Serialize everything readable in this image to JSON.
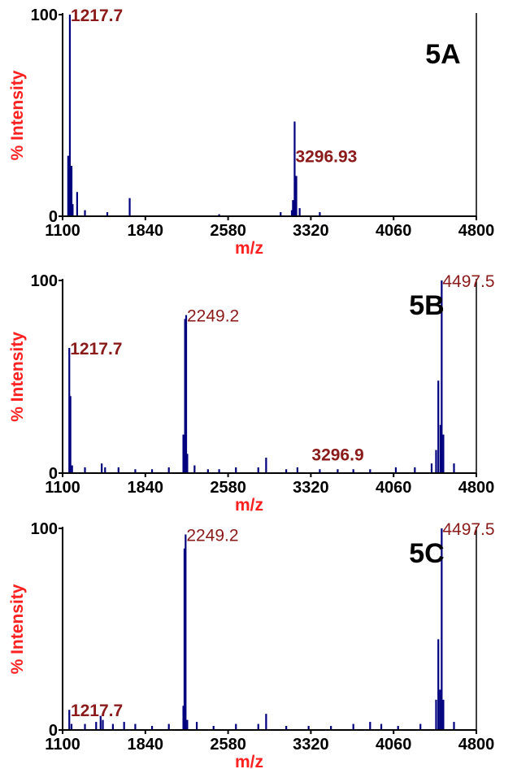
{
  "chart_data": [
    {
      "type": "bar",
      "panel_label": "5A",
      "xlabel": "m/z",
      "ylabel": "% Intensity",
      "xlim": [
        1100,
        4800
      ],
      "ylim": [
        0,
        100
      ],
      "x_ticks": [
        "1100",
        "1840",
        "2580",
        "3320",
        "4060",
        "4800"
      ],
      "y_ticks": [
        "0",
        "100"
      ],
      "peaks": [
        {
          "x": 1150,
          "y": 30
        },
        {
          "x": 1165,
          "y": 100
        },
        {
          "x": 1180,
          "y": 25
        },
        {
          "x": 1190,
          "y": 6
        },
        {
          "x": 1230,
          "y": 12
        },
        {
          "x": 1300,
          "y": 3
        },
        {
          "x": 1500,
          "y": 2
        },
        {
          "x": 1700,
          "y": 9
        },
        {
          "x": 2500,
          "y": 1
        },
        {
          "x": 3050,
          "y": 2
        },
        {
          "x": 3150,
          "y": 3
        },
        {
          "x": 3160,
          "y": 8
        },
        {
          "x": 3175,
          "y": 47
        },
        {
          "x": 3190,
          "y": 20
        },
        {
          "x": 3220,
          "y": 4
        },
        {
          "x": 3400,
          "y": 2
        }
      ],
      "annotations": [
        {
          "text": "1217.7",
          "x": 1165,
          "y": 100,
          "bold": true
        },
        {
          "text": "3296.93",
          "x": 3175,
          "y": 30,
          "bold": true
        }
      ]
    },
    {
      "type": "bar",
      "panel_label": "5B",
      "xlabel": "m/z",
      "ylabel": "% Intensity",
      "xlim": [
        1100,
        4800
      ],
      "ylim": [
        0,
        100
      ],
      "x_ticks": [
        "1100",
        "1840",
        "2580",
        "3320",
        "4060",
        "4800"
      ],
      "y_ticks": [
        "0",
        "100"
      ],
      "peaks": [
        {
          "x": 1160,
          "y": 65
        },
        {
          "x": 1170,
          "y": 40
        },
        {
          "x": 1185,
          "y": 4
        },
        {
          "x": 1300,
          "y": 3
        },
        {
          "x": 1450,
          "y": 5
        },
        {
          "x": 1480,
          "y": 3
        },
        {
          "x": 1600,
          "y": 3
        },
        {
          "x": 1750,
          "y": 2
        },
        {
          "x": 1900,
          "y": 2
        },
        {
          "x": 2050,
          "y": 3
        },
        {
          "x": 2180,
          "y": 20
        },
        {
          "x": 2195,
          "y": 80
        },
        {
          "x": 2205,
          "y": 82
        },
        {
          "x": 2215,
          "y": 10
        },
        {
          "x": 2280,
          "y": 4
        },
        {
          "x": 2400,
          "y": 2
        },
        {
          "x": 2500,
          "y": 2
        },
        {
          "x": 2650,
          "y": 3
        },
        {
          "x": 2850,
          "y": 3
        },
        {
          "x": 2920,
          "y": 8
        },
        {
          "x": 3100,
          "y": 2
        },
        {
          "x": 3200,
          "y": 3
        },
        {
          "x": 3400,
          "y": 2
        },
        {
          "x": 3560,
          "y": 2
        },
        {
          "x": 3700,
          "y": 2
        },
        {
          "x": 3850,
          "y": 2
        },
        {
          "x": 4080,
          "y": 3
        },
        {
          "x": 4250,
          "y": 3
        },
        {
          "x": 4400,
          "y": 5
        },
        {
          "x": 4440,
          "y": 12
        },
        {
          "x": 4460,
          "y": 48
        },
        {
          "x": 4480,
          "y": 25
        },
        {
          "x": 4490,
          "y": 100
        },
        {
          "x": 4505,
          "y": 20
        },
        {
          "x": 4600,
          "y": 5
        }
      ],
      "annotations": [
        {
          "text": "1217.7",
          "x": 1160,
          "y": 65,
          "bold": true
        },
        {
          "text": "2249.2",
          "x": 2205,
          "y": 82,
          "bold": false
        },
        {
          "text": "3296.9",
          "x": 3320,
          "y": 10,
          "bold": true
        },
        {
          "text": "4497.5",
          "x": 4490,
          "y": 100,
          "bold": false
        }
      ]
    },
    {
      "type": "bar",
      "panel_label": "5C",
      "xlabel": "m/z",
      "ylabel": "% Intensity",
      "xlim": [
        1100,
        4800
      ],
      "ylim": [
        0,
        100
      ],
      "x_ticks": [
        "1100",
        "1840",
        "2580",
        "3320",
        "4060",
        "4800"
      ],
      "y_ticks": [
        "0",
        "100"
      ],
      "peaks": [
        {
          "x": 1160,
          "y": 10
        },
        {
          "x": 1180,
          "y": 3
        },
        {
          "x": 1300,
          "y": 3
        },
        {
          "x": 1400,
          "y": 4
        },
        {
          "x": 1440,
          "y": 7
        },
        {
          "x": 1460,
          "y": 5
        },
        {
          "x": 1550,
          "y": 3
        },
        {
          "x": 1650,
          "y": 4
        },
        {
          "x": 1750,
          "y": 3
        },
        {
          "x": 1900,
          "y": 2
        },
        {
          "x": 2050,
          "y": 3
        },
        {
          "x": 2180,
          "y": 12
        },
        {
          "x": 2190,
          "y": 90
        },
        {
          "x": 2200,
          "y": 97
        },
        {
          "x": 2215,
          "y": 5
        },
        {
          "x": 2300,
          "y": 4
        },
        {
          "x": 2450,
          "y": 2
        },
        {
          "x": 2650,
          "y": 3
        },
        {
          "x": 2850,
          "y": 3
        },
        {
          "x": 2920,
          "y": 8
        },
        {
          "x": 3100,
          "y": 2
        },
        {
          "x": 3300,
          "y": 2
        },
        {
          "x": 3500,
          "y": 2
        },
        {
          "x": 3700,
          "y": 3
        },
        {
          "x": 3850,
          "y": 4
        },
        {
          "x": 3950,
          "y": 3
        },
        {
          "x": 4100,
          "y": 2
        },
        {
          "x": 4300,
          "y": 3
        },
        {
          "x": 4440,
          "y": 15
        },
        {
          "x": 4460,
          "y": 45
        },
        {
          "x": 4475,
          "y": 20
        },
        {
          "x": 4490,
          "y": 100
        },
        {
          "x": 4505,
          "y": 15
        },
        {
          "x": 4600,
          "y": 4
        }
      ],
      "annotations": [
        {
          "text": "1217.7",
          "x": 1165,
          "y": 10,
          "bold": true
        },
        {
          "text": "2249.2",
          "x": 2200,
          "y": 97,
          "bold": false
        },
        {
          "text": "4497.5",
          "x": 4490,
          "y": 100,
          "bold": false
        }
      ]
    }
  ],
  "colors": {
    "peak": "#00007f",
    "axis": "#000000",
    "axis_title": "#ff2020",
    "annotation": "#8b1a1a"
  }
}
